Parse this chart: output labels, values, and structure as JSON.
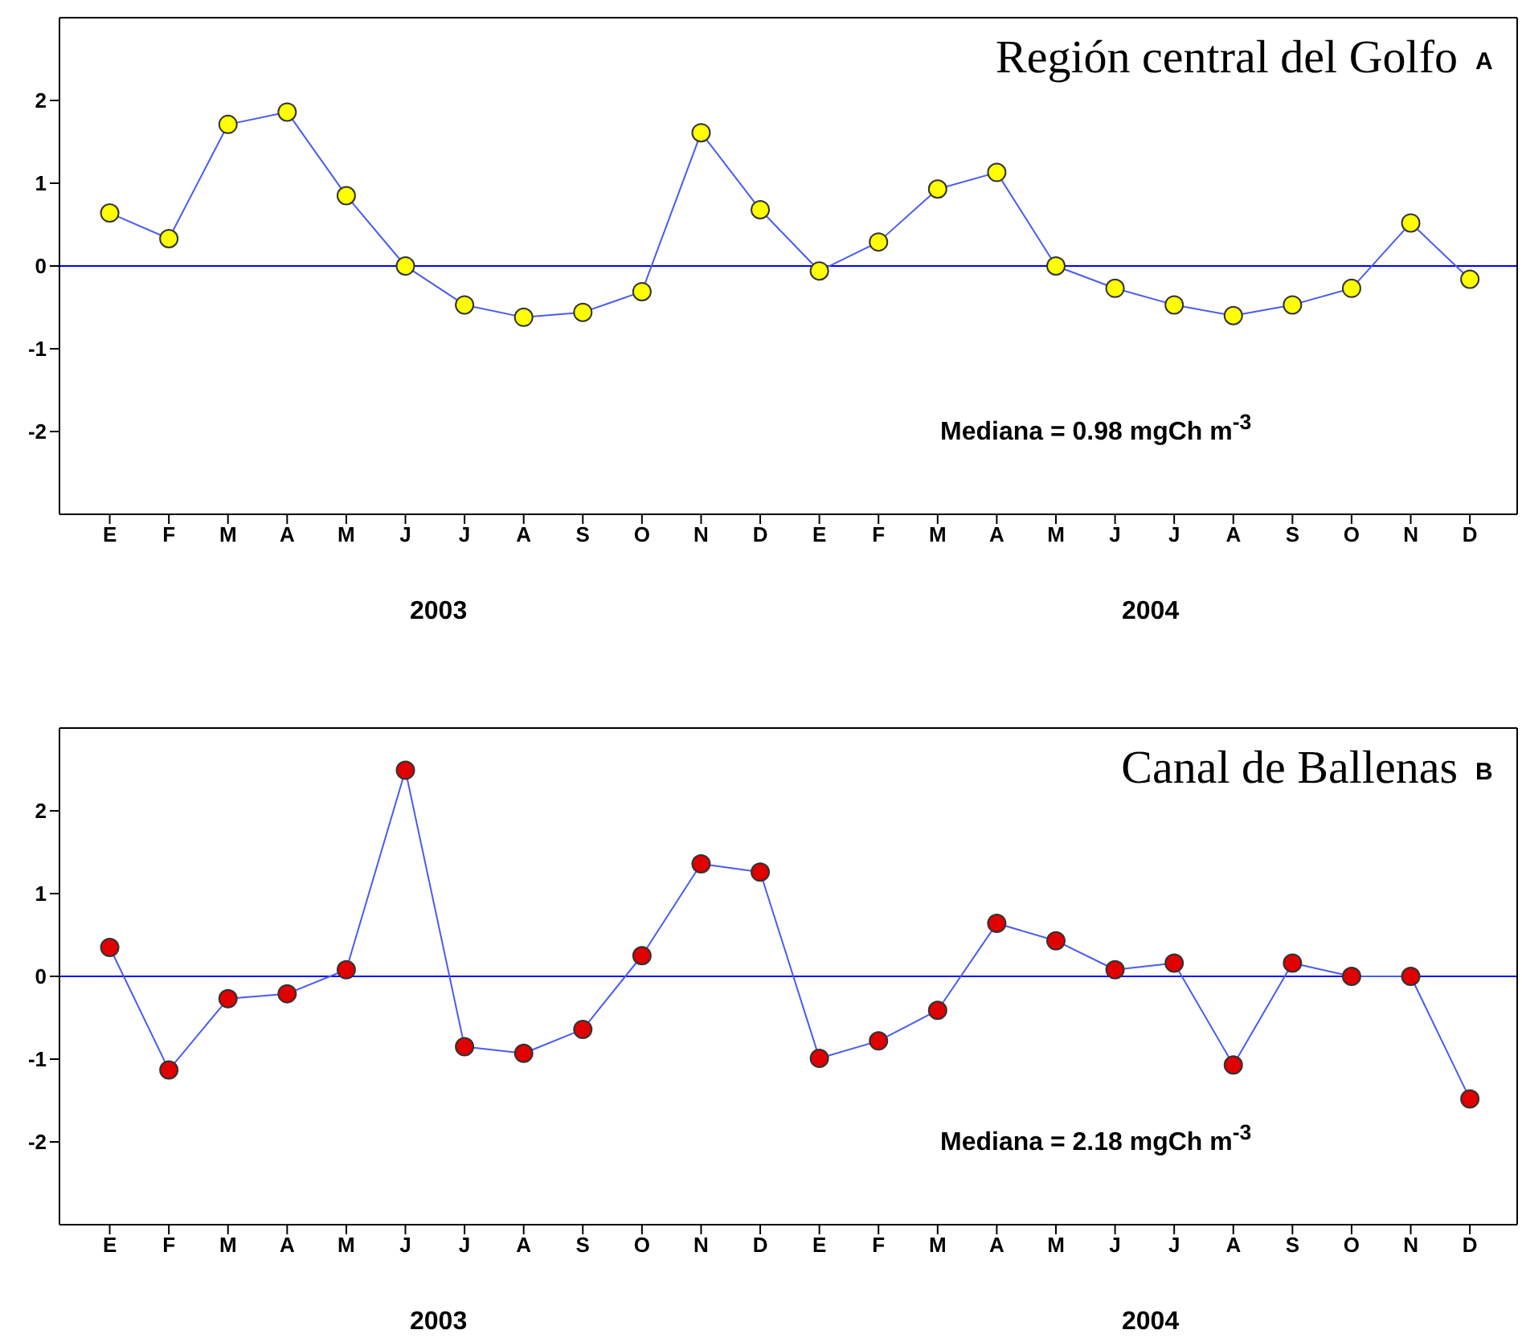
{
  "chart_data": [
    {
      "type": "line",
      "title": "Región central del Golfo",
      "categories": [
        "E",
        "F",
        "M",
        "A",
        "M",
        "J",
        "J",
        "A",
        "S",
        "O",
        "N",
        "D",
        "E",
        "F",
        "M",
        "A",
        "M",
        "J",
        "J",
        "A",
        "S",
        "O",
        "N",
        "D"
      ],
      "series": [
        {
          "color": "#4a5cf0",
          "colors": [
            "#ffff00",
            "#ffff00",
            "#ffff00",
            "#ffff00",
            "#ffff00",
            "#ffff00",
            "#ffff00",
            "#ffff00",
            "#ffff00",
            "#ffff00",
            "#ffff00",
            "#ffff00",
            "#ffff00",
            "#ffff00",
            "#ffff00",
            "#ffff00",
            "#ffff00",
            "#ffff00",
            "#ffff00",
            "#ffff00",
            "#ffff00",
            "#ffff00",
            "#ffff00",
            "#ffff00"
          ],
          "values": [
            0.64,
            0.33,
            1.71,
            1.86,
            0.85,
            0,
            -0.47,
            -0.62,
            -0.56,
            -0.31,
            1.61,
            0.68,
            -0.06,
            0.29,
            0.93,
            1.13,
            0,
            -0.27,
            -0.47,
            -0.6,
            -0.47,
            -0.27,
            0.52,
            -0.16
          ]
        }
      ],
      "ylim": [
        -3,
        3
      ],
      "yticks": [
        -2,
        -1,
        0,
        1,
        2
      ],
      "marker": "circle",
      "ref_lines": [
        {
          "axis": "y",
          "value": 0,
          "color": "#0000ff"
        }
      ],
      "annotations": [
        "A",
        "Mediana = 0.98 mgCh m$^{-3}$",
        "2003",
        "2004"
      ]
    },
    {
      "type": "line",
      "title": "Canal de Ballenas",
      "categories": [
        "E",
        "F",
        "M",
        "A",
        "M",
        "J",
        "J",
        "A",
        "S",
        "O",
        "N",
        "D",
        "E",
        "F",
        "M",
        "A",
        "M",
        "J",
        "J",
        "A",
        "S",
        "O",
        "N",
        "D"
      ],
      "series": [
        {
          "color": "#4a5cf0",
          "colors": [
            "#e00000",
            "#e00000",
            "#e00000",
            "#e00000",
            "#e00000",
            "#e00000",
            "#e00000",
            "#e00000",
            "#e00000",
            "#e00000",
            "#e00000",
            "#e00000",
            "#e00000",
            "#e00000",
            "#e00000",
            "#e00000",
            "#e00000",
            "#e00000",
            "#e00000",
            "#e00000",
            "#e00000",
            "#e00000",
            "#e00000",
            "#e00000"
          ],
          "values": [
            0.35,
            -1.13,
            -0.27,
            -0.21,
            0.08,
            2.49,
            -0.85,
            -0.93,
            -0.64,
            0.25,
            1.36,
            1.26,
            -0.99,
            -0.78,
            -0.41,
            0.64,
            0.43,
            0.08,
            0.16,
            -1.07,
            0.16,
            0,
            0,
            -1.48
          ]
        }
      ],
      "ylim": [
        -3,
        3
      ],
      "yticks": [
        -2,
        -1,
        0,
        1,
        2
      ],
      "marker": "circle",
      "ref_lines": [
        {
          "axis": "y",
          "value": 0,
          "color": "#0000ff"
        }
      ],
      "annotations": [
        "B",
        "Mediana = 2.18 mgCh m$^{-3}$",
        "2003",
        "2004"
      ]
    }
  ]
}
